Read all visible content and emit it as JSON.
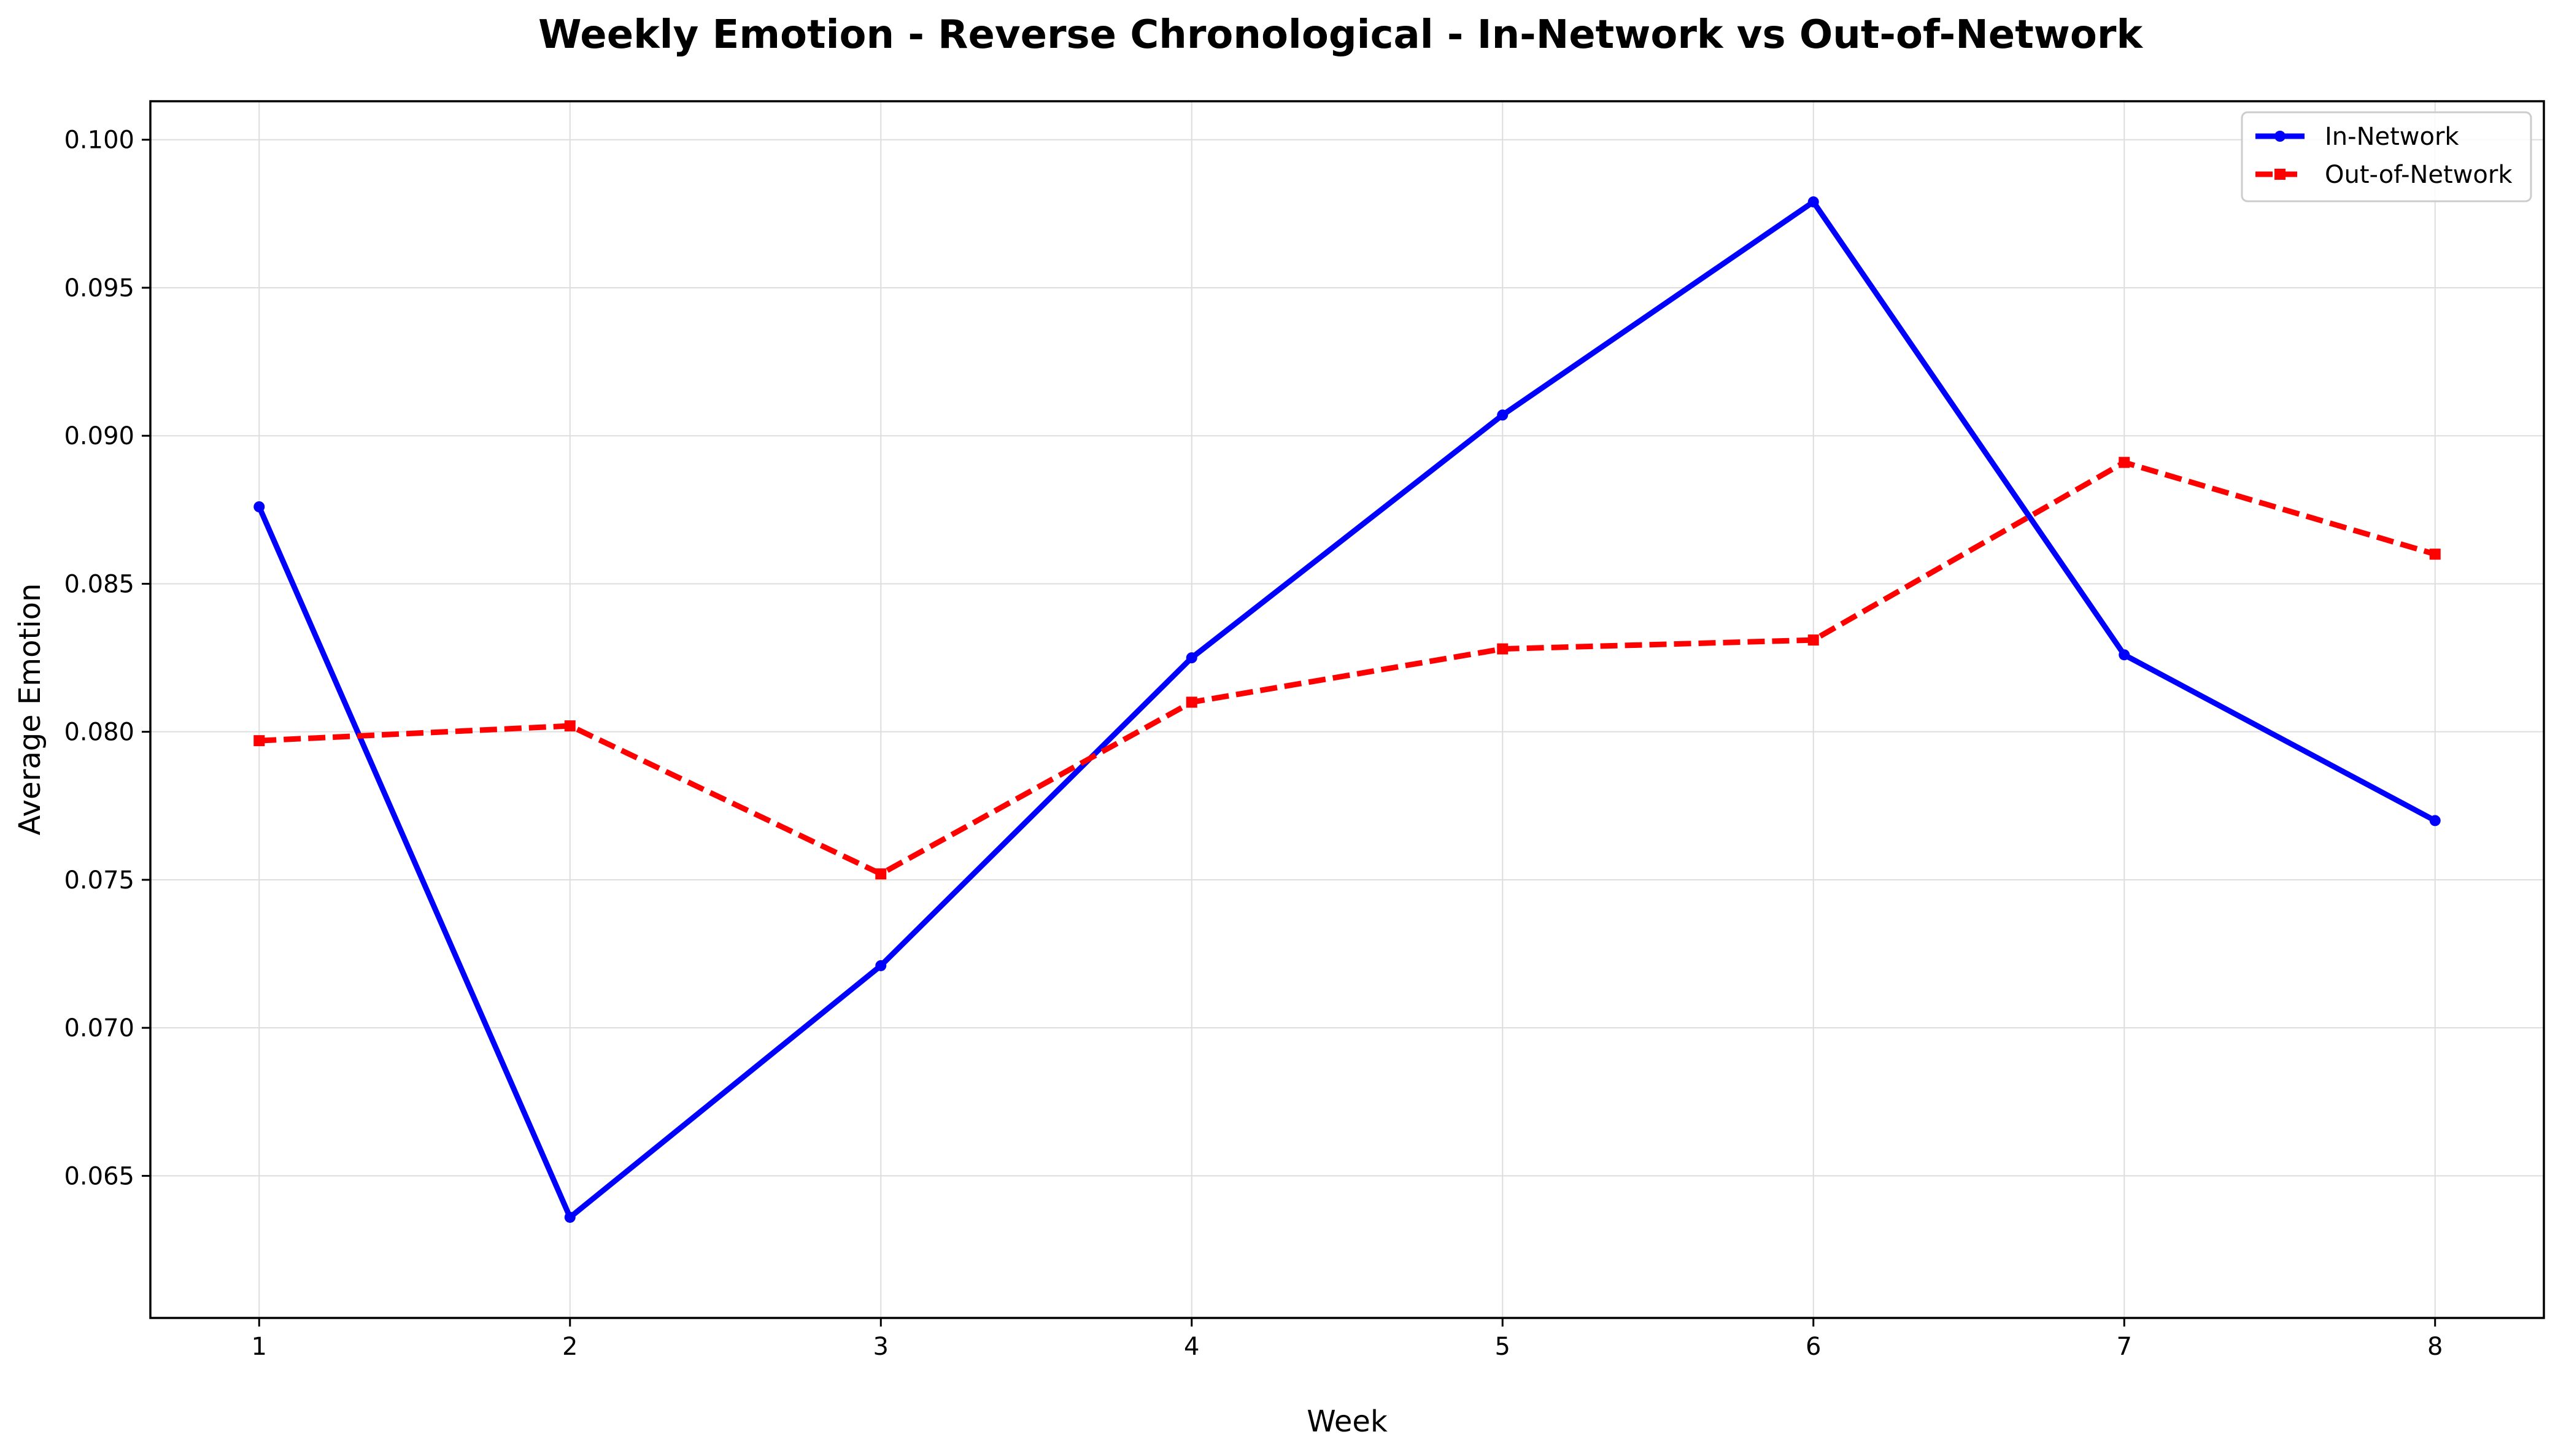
{
  "chart_data": {
    "type": "line",
    "title": "Weekly Emotion - Reverse Chronological - In-Network vs Out-of-Network",
    "xlabel": "Week",
    "ylabel": "Average Emotion",
    "x": [
      1,
      2,
      3,
      4,
      5,
      6,
      7,
      8
    ],
    "xticks": [
      "1",
      "2",
      "3",
      "4",
      "5",
      "6",
      "7",
      "8"
    ],
    "yticks": [
      0.065,
      0.07,
      0.075,
      0.08,
      0.085,
      0.09,
      0.095,
      0.1
    ],
    "ytick_labels": [
      "0.065",
      "0.070",
      "0.075",
      "0.080",
      "0.085",
      "0.090",
      "0.095",
      "0.100"
    ],
    "xlim": [
      0.65,
      8.35
    ],
    "ylim": [
      0.0602,
      0.1013
    ],
    "grid": true,
    "legend_position": "top-right",
    "series": [
      {
        "name": "In-Network",
        "color": "#0000ff",
        "line_style": "solid",
        "marker": "circle",
        "values": [
          0.0876,
          0.0636,
          0.0721,
          0.0825,
          0.0907,
          0.0979,
          0.0826,
          0.077
        ]
      },
      {
        "name": "Out-of-Network",
        "color": "#ff0000",
        "line_style": "dashed",
        "marker": "square",
        "values": [
          0.0797,
          0.0802,
          0.0752,
          0.081,
          0.0828,
          0.0831,
          0.0891,
          0.086
        ]
      }
    ]
  }
}
